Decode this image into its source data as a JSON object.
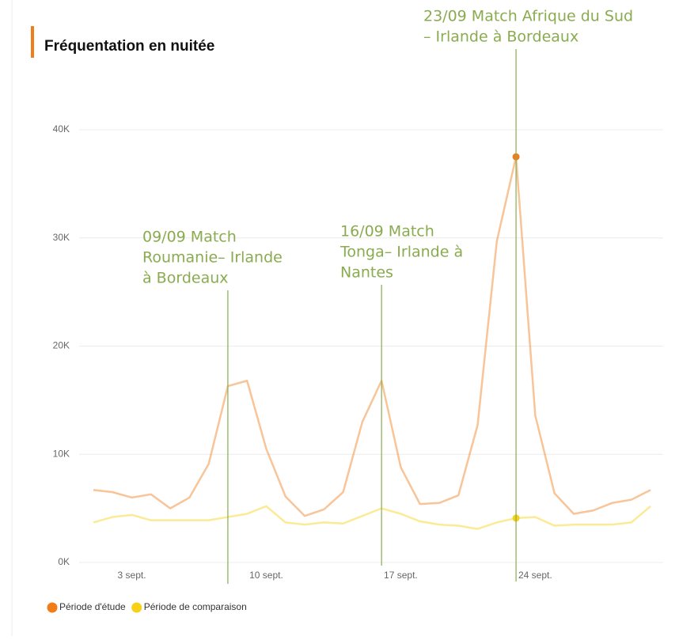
{
  "chart_data": {
    "type": "line",
    "title": "Fréquentation en nuitée",
    "x": [
      1,
      2,
      3,
      4,
      5,
      6,
      7,
      8,
      9,
      10,
      11,
      12,
      13,
      14,
      15,
      16,
      17,
      18,
      19,
      20,
      21,
      22,
      23,
      24,
      25,
      26,
      27,
      28,
      29,
      30
    ],
    "xlim": [
      1,
      30
    ],
    "xticks": [
      {
        "value": 3,
        "label": "3 sept."
      },
      {
        "value": 10,
        "label": "10 sept."
      },
      {
        "value": 17,
        "label": "17 sept."
      },
      {
        "value": 24,
        "label": "24 sept."
      }
    ],
    "ylim": [
      0,
      40000
    ],
    "yticks": [
      {
        "value": 0,
        "label": "0K"
      },
      {
        "value": 10000,
        "label": "10K"
      },
      {
        "value": 20000,
        "label": "20K"
      },
      {
        "value": 30000,
        "label": "30K"
      },
      {
        "value": 40000,
        "label": "40K"
      }
    ],
    "grid": true,
    "legend": "bottom-left",
    "highlight": 23,
    "series": [
      {
        "name": "Période d'étude",
        "color": "#f07d1a",
        "values": [
          6700,
          6500,
          6000,
          6300,
          5000,
          6000,
          9100,
          16300,
          16800,
          10500,
          6100,
          4300,
          4900,
          6500,
          13000,
          16800,
          8800,
          5400,
          5500,
          6200,
          12700,
          29700,
          37500,
          13600,
          6400,
          4500,
          4800,
          5500,
          5800,
          6700
        ]
      },
      {
        "name": "Période de comparaison",
        "color": "#f7d117",
        "values": [
          3700,
          4200,
          4400,
          3900,
          3900,
          3900,
          3900,
          4200,
          4500,
          5200,
          3700,
          3500,
          3700,
          3600,
          4300,
          5000,
          4500,
          3800,
          3500,
          3400,
          3100,
          3700,
          4100,
          4200,
          3400,
          3500,
          3500,
          3500,
          3700,
          5200
        ]
      }
    ],
    "annotations": [
      {
        "x": 8,
        "lines": [
          "09/09 Match",
          "Roumanie– Irlande",
          "à Bordeaux"
        ]
      },
      {
        "x": 16,
        "lines": [
          "16/09 Match",
          "Tonga– Irlande à",
          "Nantes"
        ]
      },
      {
        "x": 23,
        "lines": [
          "23/09 Match Afrique du Sud",
          "– Irlande à Bordeaux"
        ]
      }
    ]
  }
}
